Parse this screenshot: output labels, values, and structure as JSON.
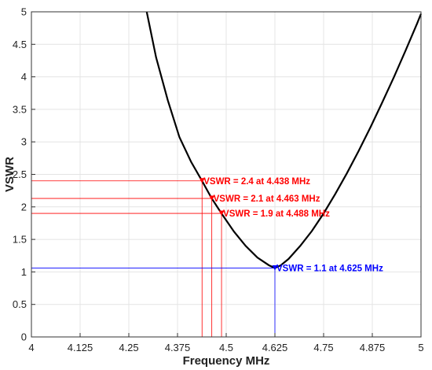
{
  "chart_data": {
    "type": "line",
    "xlabel": "Frequency MHz",
    "ylabel": "VSWR",
    "xlim": [
      4,
      5
    ],
    "ylim": [
      0,
      5
    ],
    "x_ticks": [
      "4",
      "4.125",
      "4.25",
      "4.375",
      "4.5",
      "4.625",
      "4.75",
      "4.875",
      "5"
    ],
    "y_ticks": [
      "0",
      "0.5",
      "1",
      "1.5",
      "2",
      "2.5",
      "3",
      "3.5",
      "4",
      "4.5",
      "5"
    ],
    "grid": true,
    "curve_color": "#000000",
    "series": [
      {
        "x": [
          4.296,
          4.32,
          4.35,
          4.38,
          4.41,
          4.438,
          4.463,
          4.488,
          4.52,
          4.55,
          4.58,
          4.61,
          4.625,
          4.64,
          4.66,
          4.69,
          4.72,
          4.75,
          4.78,
          4.81,
          4.84,
          4.87,
          4.9,
          4.93,
          4.96,
          4.99,
          5.0
        ],
        "values": [
          5.0,
          4.3,
          3.64,
          3.07,
          2.69,
          2.4,
          2.13,
          1.9,
          1.62,
          1.4,
          1.22,
          1.1,
          1.06,
          1.1,
          1.2,
          1.4,
          1.63,
          1.9,
          2.2,
          2.52,
          2.86,
          3.22,
          3.6,
          3.99,
          4.4,
          4.82,
          4.97
        ]
      }
    ],
    "markers": [
      {
        "x": 4.438,
        "y": 2.4,
        "label": "VSWR = 2.4 at 4.438 MHz",
        "color": "#ff0000"
      },
      {
        "x": 4.463,
        "y": 2.13,
        "label": "VSWR = 2.1 at 4.463 MHz",
        "color": "#ff0000"
      },
      {
        "x": 4.488,
        "y": 1.9,
        "label": "VSWR = 1.9 at 4.488 MHz",
        "color": "#ff0000"
      },
      {
        "x": 4.625,
        "y": 1.06,
        "label": "VSWR = 1.1 at 4.625 MHz",
        "color": "#0000ff"
      }
    ]
  }
}
